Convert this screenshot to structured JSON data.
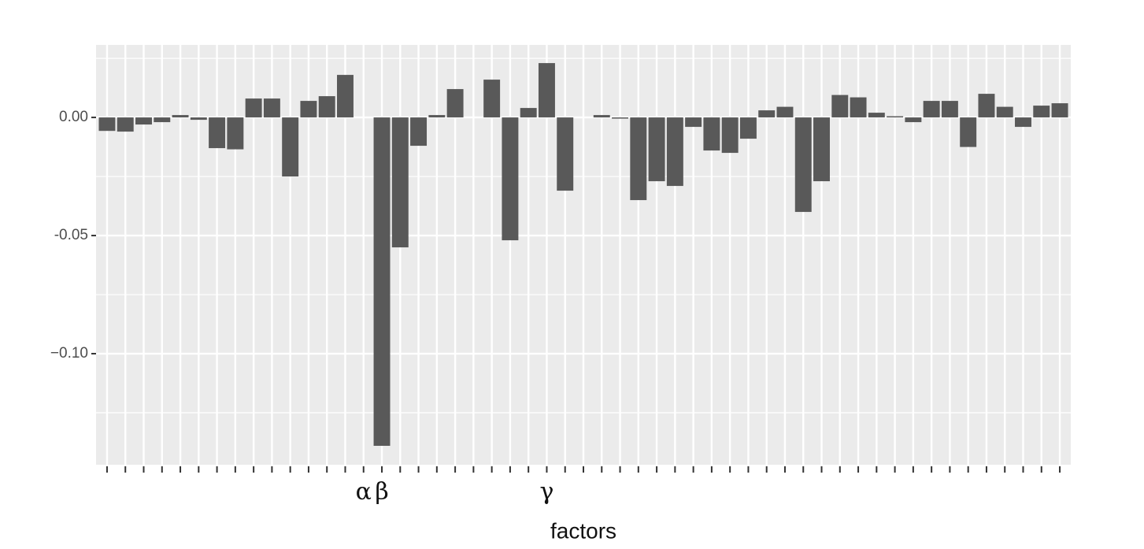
{
  "chart_data": {
    "type": "bar",
    "x_label": "factors",
    "categories": [
      null,
      null,
      null,
      null,
      null,
      null,
      null,
      null,
      null,
      null,
      null,
      null,
      null,
      null,
      "α",
      "β",
      null,
      null,
      null,
      null,
      null,
      null,
      null,
      null,
      "γ",
      null,
      null,
      null,
      null,
      null,
      null,
      null,
      null,
      null,
      null,
      null,
      null,
      null,
      null,
      null,
      null,
      null,
      null,
      null,
      null,
      null,
      null,
      null,
      null,
      null,
      null,
      null,
      null
    ],
    "values": [
      -0.0057,
      -0.006,
      -0.003,
      -0.002,
      0.001,
      -0.001,
      -0.013,
      -0.0135,
      0.008,
      0.008,
      -0.025,
      0.007,
      0.009,
      0.018,
      0,
      -0.139,
      -0.055,
      -0.012,
      0.001,
      0.012,
      0,
      0.016,
      -0.052,
      0.004,
      0.023,
      -0.031,
      0,
      0.001,
      -0.0005,
      -0.035,
      -0.027,
      -0.029,
      -0.004,
      -0.014,
      -0.015,
      -0.009,
      0.003,
      0.0045,
      -0.04,
      -0.027,
      0.0095,
      0.0085,
      0.002,
      0.0005,
      -0.002,
      0.007,
      0.007,
      -0.0125,
      0.01,
      0.0045,
      -0.004,
      0.005,
      0.006
    ],
    "color": "#595959",
    "ylim": [
      -0.147,
      0.0307
    ],
    "yticks": [
      {
        "value": 0,
        "label": "0.00"
      },
      {
        "value": -0.05,
        "label": "-0.05"
      },
      {
        "value": -0.1,
        "label": "−0.10"
      }
    ],
    "grid": true
  }
}
